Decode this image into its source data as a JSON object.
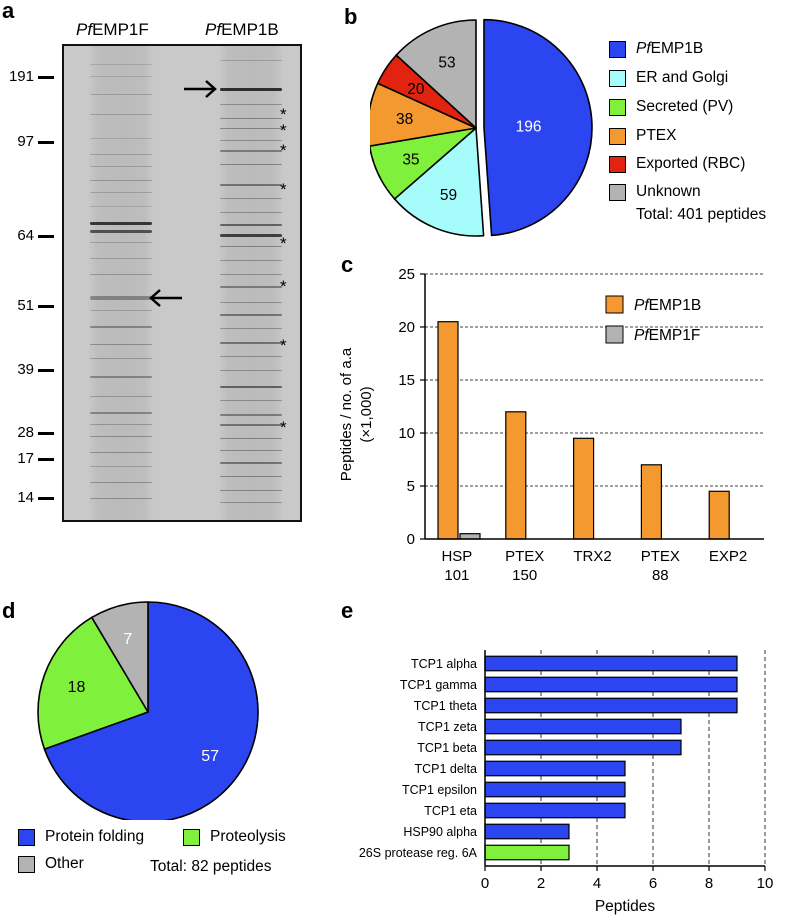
{
  "panels": {
    "a": "a",
    "b": "b",
    "c": "c",
    "d": "d",
    "e": "e"
  },
  "gel": {
    "lanes": [
      "PfEMP1F",
      "PfEMP1B"
    ],
    "lane_titles": [
      {
        "italic": "Pf",
        "rest": "EMP1F"
      },
      {
        "italic": "Pf",
        "rest": "EMP1B"
      }
    ],
    "mw_markers": [
      "191",
      "97",
      "64",
      "51",
      "39",
      "28",
      "17",
      "14"
    ],
    "arrow_left": "←",
    "arrow_right": "→",
    "stars": [
      "*",
      "*",
      "*",
      "*",
      "*",
      "*",
      "*",
      "*"
    ]
  },
  "chart_data": [
    {
      "panel": "b",
      "type": "pie",
      "categories": [
        "PfEMP1B",
        "ER and Golgi",
        "Secreted (PV)",
        "PTEX",
        "Exported (RBC)",
        "Unknown"
      ],
      "values": [
        196,
        59,
        35,
        38,
        20,
        53
      ],
      "colors": [
        "#2b45f0",
        "#a6fbfb",
        "#7ff13d",
        "#f3992f",
        "#e2230f",
        "#b3b3b3"
      ],
      "label_colors": [
        "#ffffff",
        "#000000",
        "#000000",
        "#000000",
        "#000000",
        "#000000"
      ],
      "total_label": "Total: 401 peptides"
    },
    {
      "panel": "c",
      "type": "bar",
      "categories": [
        [
          "HSP",
          "101"
        ],
        [
          "PTEX",
          "150"
        ],
        [
          "TRX2",
          ""
        ],
        [
          "PTEX",
          "88"
        ],
        [
          "EXP2",
          ""
        ]
      ],
      "series": [
        {
          "name": "PfEMP1B",
          "name_italic": "Pf",
          "name_rest": "EMP1B",
          "color": "#f3992f",
          "values": [
            20.5,
            12,
            9.5,
            7,
            4.5
          ]
        },
        {
          "name": "PfEMP1F",
          "name_italic": "Pf",
          "name_rest": "EMP1F",
          "color": "#b3b3b3",
          "values": [
            0.5,
            0,
            0,
            0,
            0
          ]
        }
      ],
      "ylabel_line1": "Peptides / no. of a.a",
      "ylabel_line2": "(×1,000)",
      "ylim": [
        0,
        25
      ],
      "yticks": [
        "0",
        "5",
        "10",
        "15",
        "20",
        "25"
      ],
      "grid": true
    },
    {
      "panel": "d",
      "type": "pie",
      "categories": [
        "Protein folding",
        "Proteolysis",
        "Other"
      ],
      "values": [
        57,
        18,
        7
      ],
      "colors": [
        "#2b45f0",
        "#7ff13d",
        "#b3b3b3"
      ],
      "label_colors": [
        "#ffffff",
        "#000000",
        "#ffffff"
      ],
      "total_label": "Total: 82 peptides"
    },
    {
      "panel": "e",
      "type": "bar",
      "orientation": "horizontal",
      "categories": [
        "TCP1 alpha",
        "TCP1 gamma",
        "TCP1 theta",
        "TCP1 zeta",
        "TCP1 beta",
        "TCP1 delta",
        "TCP1 epsilon",
        "TCP1 eta",
        "HSP90 alpha",
        "26S protease reg. 6A"
      ],
      "values": [
        9,
        9,
        9,
        7,
        7,
        5,
        5,
        5,
        3,
        3
      ],
      "colors": [
        "#2b45f0",
        "#2b45f0",
        "#2b45f0",
        "#2b45f0",
        "#2b45f0",
        "#2b45f0",
        "#2b45f0",
        "#2b45f0",
        "#2b45f0",
        "#7ff13d"
      ],
      "xlabel": "Peptides",
      "xlim": [
        0,
        10
      ],
      "xticks": [
        "0",
        "2",
        "4",
        "6",
        "8",
        "10"
      ],
      "grid": true
    }
  ]
}
